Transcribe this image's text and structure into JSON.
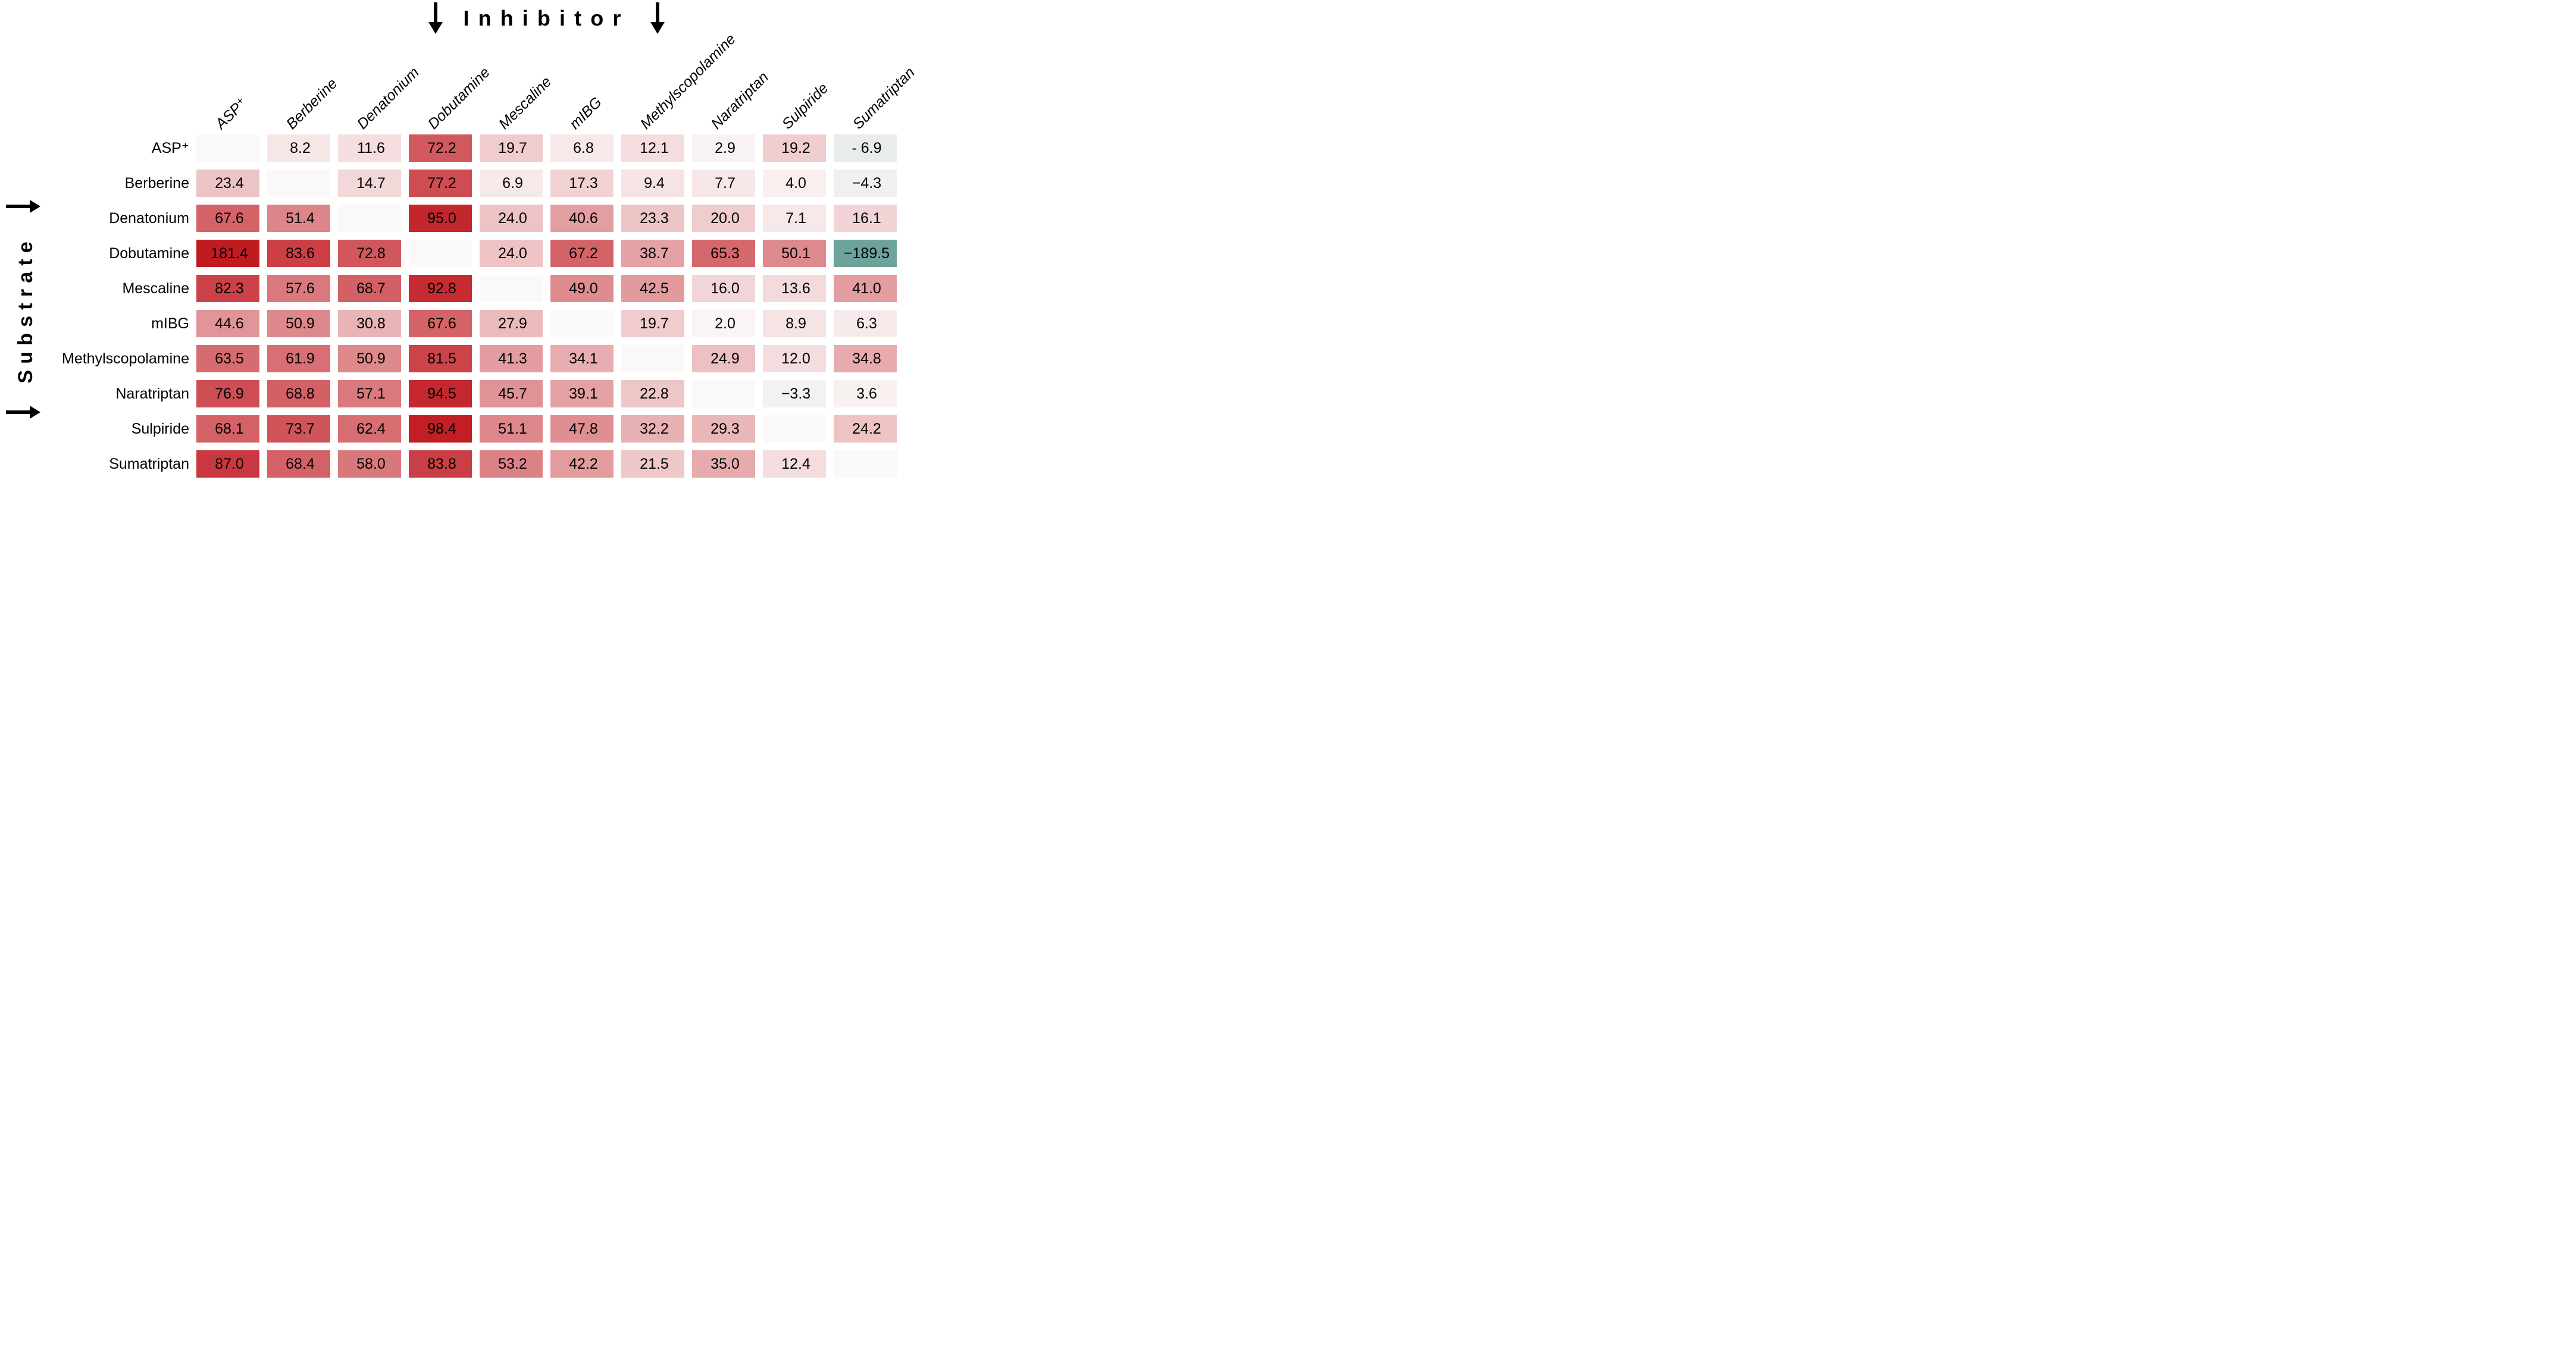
{
  "figure": {
    "top_axis_title": "Inhibitor",
    "left_axis_title": "Substrate"
  },
  "chart_data": {
    "type": "heatmap",
    "x_axis_title": "Inhibitor",
    "y_axis_title": "Substrate",
    "legend": "none",
    "grid_gaps": true,
    "columns": [
      "ASP⁺",
      "Berberine",
      "Denatonium",
      "Dobutamine",
      "Mescaline",
      "mIBG",
      "Methylscopolamine",
      "Naratriptan",
      "Sulpiride",
      "Sumatriptan"
    ],
    "rows": [
      "ASP⁺",
      "Berberine",
      "Denatonium",
      "Dobutamine",
      "Mescaline",
      "mIBG",
      "Methylscopolamine",
      "Naratriptan",
      "Sulpiride",
      "Sumatriptan"
    ],
    "values": [
      [
        "",
        "8.2",
        "11.6",
        "72.2",
        "19.7",
        "6.8",
        "12.1",
        "2.9",
        "19.2",
        "- 6.9"
      ],
      [
        "23.4",
        "",
        "14.7",
        "77.2",
        "6.9",
        "17.3",
        "9.4",
        "7.7",
        "4.0",
        "−4.3"
      ],
      [
        "67.6",
        "51.4",
        "",
        "95.0",
        "24.0",
        "40.6",
        "23.3",
        "20.0",
        "7.1",
        "16.1"
      ],
      [
        "181.4",
        "83.6",
        "72.8",
        "",
        "24.0",
        "67.2",
        "38.7",
        "65.3",
        "50.1",
        "−189.5"
      ],
      [
        "82.3",
        "57.6",
        "68.7",
        "92.8",
        "",
        "49.0",
        "42.5",
        "16.0",
        "13.6",
        "41.0"
      ],
      [
        "44.6",
        "50.9",
        "30.8",
        "67.6",
        "27.9",
        "",
        "19.7",
        "2.0",
        "8.9",
        "6.3"
      ],
      [
        "63.5",
        "61.9",
        "50.9",
        "81.5",
        "41.3",
        "34.1",
        "",
        "24.9",
        "12.0",
        "34.8"
      ],
      [
        "76.9",
        "68.8",
        "57.1",
        "94.5",
        "45.7",
        "39.1",
        "22.8",
        "",
        "−3.3",
        "3.6"
      ],
      [
        "68.1",
        "73.7",
        "62.4",
        "98.4",
        "51.1",
        "47.8",
        "32.2",
        "29.3",
        "",
        "24.2"
      ],
      [
        "87.0",
        "68.4",
        "58.0",
        "83.8",
        "53.2",
        "42.2",
        "21.5",
        "35.0",
        "12.4",
        ""
      ]
    ],
    "color_scale": {
      "zero_color": "#fbf8f8",
      "positive_color": "#c11b22",
      "positive_max": 100,
      "negative_color": "#6ea39b",
      "negative_max": 50
    }
  }
}
